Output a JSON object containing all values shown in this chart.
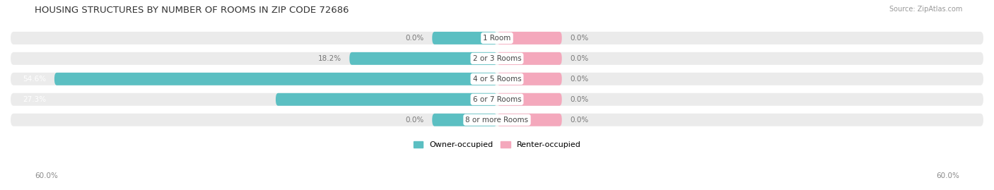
{
  "title": "HOUSING STRUCTURES BY NUMBER OF ROOMS IN ZIP CODE 72686",
  "source": "Source: ZipAtlas.com",
  "categories": [
    "1 Room",
    "2 or 3 Rooms",
    "4 or 5 Rooms",
    "6 or 7 Rooms",
    "8 or more Rooms"
  ],
  "owner_pct": [
    0.0,
    18.2,
    54.6,
    27.3,
    0.0
  ],
  "renter_pct": [
    0.0,
    0.0,
    0.0,
    0.0,
    0.0
  ],
  "x_max": 60.0,
  "owner_color": "#5BBFC2",
  "renter_color": "#F4A8BC",
  "bar_bg_color": "#EBEBEB",
  "bar_height": 0.62,
  "min_display_pct": 8.0,
  "label_color_dark": "#777777",
  "label_color_white": "#FFFFFF",
  "axis_label_left": "60.0%",
  "axis_label_right": "60.0%",
  "title_fontsize": 9.5,
  "source_fontsize": 7,
  "pct_label_fontsize": 7.5,
  "category_fontsize": 7.5,
  "legend_fontsize": 8
}
